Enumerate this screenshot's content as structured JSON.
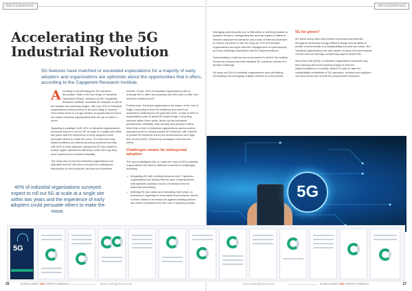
{
  "header": {
    "left_tag": "INFOGRAPHIC",
    "right_tag": "INFOGRAPHIC"
  },
  "article": {
    "title": "Accelerating the 5G Industrial Revolution",
    "standfirst": "5G features have matched or exceeded expectations for a majority of early adopters and organizations are optimistic about the opportunities that it offers, according to the Capgemini Research Institute.",
    "col1_p1_rest": "ccording to Accelerating the 5G Industrial Revolution: State of 5G and Edge in Industrial Operations Report, released by the Capgemini Research Institute, industrial 5G adoption is still at the ideation and planning stages, with only 30% of industrial organizations having moved to the pilot stage or beyond. This means there is a huge window of opportunity for telcos and those industrial organizations that are yet to make a move.",
    "dropcap": "A",
    "col1_p2": "Signaling a paradigm shift, 40% of industrial organizations surveyed expect to roll out 5G at scale at a single site within two years and the experience of early adopters could persuade others to make the move. 5G trials and early implementations are delivering strong business benefits, with 60% of early adopters saying that 5G has helped to realize higher operational efficiency, while 43% say they have experienced increased flexibility.",
    "col1_p3": "The study also found that industrial organizations are optimistic that 5G will drive revenues by enabling the introduction of new products, services and business",
    "col2_p1": "models. In fact, 51% of industrial organizations plan to leverage 5G to offer new products and 46% plan to offer new services enabled by 5G.",
    "col2_p2": "Furthermore, industrial organizations are aware of the role of Edge Computing in their 5G initiatives and view it as essential to realizing the full potential of 5G. A total of 64% of organizations plan to adopt 5G-based Edge Computing services within three years, driven by the increased performance, reliability, data security and privacy it offers. More than a third of industrial organizations across sectors surveyed prefer to deploy private 5G networks, with interest in private 5G networks led by the semiconductor and high-tech sector (53%), followed by aerospace and defense (46%).",
    "col2_subhead": "Challenges remain for widespread adoption",
    "col2_p3": "The report highlights that, to make the most of 5G's potential, organizations will need to address a number of challenges, including:",
    "bullets": [
      "Integrating 5G with existing networks and IT systems: organizations are finding that the lack of standardized, interoperable solutions result in increased time for assembly and testing",
      "Defining 5G use cases and estimating their return on investment, especially in brownfield environments, where a return needs to be measured against existing options like wired connections and the cost of replacing cables"
    ],
    "col3_p1": "Managing cybersecurity due to difficulties in selecting trusted or qualified vendors, ambiguating the security impact of different network deployment scenarios and a lack of internal processes to reduce exposure to risk. As many as 70% of industrial organizations surveyed view the management of cybersecurity as a key challenge associated with 5G implementations.",
    "col3_p2": "Orchestrating a multi-vendor environment to deliver the multiple functional components that industrial 5G solutions consist of is another challenge.",
    "col3_p3": "As many as 69% of industrial organizations view identifying, onboarding and managing multiple vendors as a key barrier.",
    "col4_subhead": "5G for green?",
    "col4_p1": "5G offers many direct and indirect environmental benefits through its inherently energy-efficient design and its ability to enable environmental and sustainability-focused use cases. But industrial organizations are also aware of areas of environmental concern and are already considering ways to tackle this.",
    "col4_p2": "More than half (53%) of industrial organizations surveyed say that reducing the environmental impact of their 5G implementations is a priority, while 67% plan to take the sustainability credentials of 5G operators, vendors and suppliers into account as part of their 5G procurement decisions.",
    "pullquote": "40% of industrial organizations surveyed expect to roll out 5G at scale at a single site within two years and the experience of early adopters could persuade others to make the move."
  },
  "hero": {
    "badge": "5G"
  },
  "report_preview": {
    "cover_text": "5G"
  },
  "footer": {
    "left_page": "26",
    "right_page": "27",
    "left_mag_prefix": "INTELLIGENT ",
    "left_mag_brand": "CIO",
    "left_mag_suffix": " NORTH AMERICA",
    "right_mag_prefix": "INTELLIGENT ",
    "right_mag_brand": "CIO",
    "right_mag_suffix": " NORTH AMERICA",
    "url1": "www.intelligentcio.com",
    "url2": "www.intelligentcio.com"
  },
  "colors": {
    "accent": "#e0532f",
    "blue": "#2f5c86",
    "green": "#1aa67a"
  }
}
